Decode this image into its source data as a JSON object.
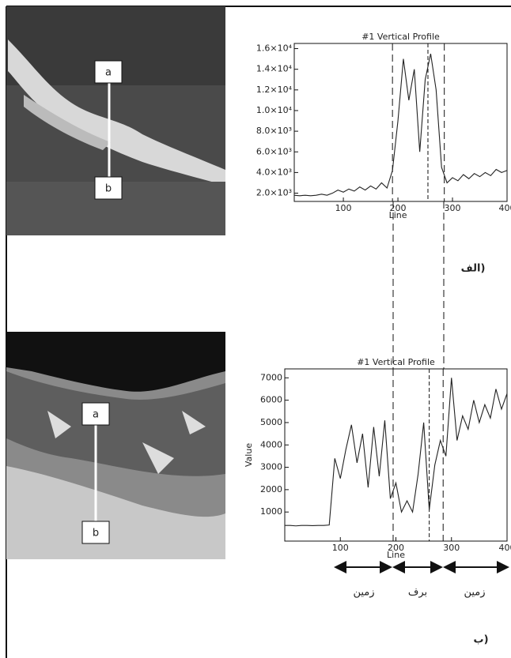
{
  "chart_data": [
    {
      "type": "line",
      "title": "#1 Vertical Profile",
      "x_label": "Line",
      "x": [
        10,
        20,
        30,
        40,
        50,
        60,
        70,
        80,
        90,
        100,
        110,
        120,
        130,
        140,
        150,
        160,
        170,
        180,
        190,
        200,
        210,
        220,
        230,
        240,
        250,
        260,
        270,
        280,
        290,
        300,
        310,
        320,
        330,
        340,
        350,
        360,
        370,
        380,
        390,
        400
      ],
      "values": [
        1800,
        1750,
        1800,
        1750,
        1800,
        1900,
        1800,
        2000,
        2300,
        2100,
        2400,
        2200,
        2600,
        2300,
        2700,
        2400,
        3000,
        2500,
        4200,
        9000,
        15000,
        11000,
        14000,
        6000,
        13000,
        15500,
        12000,
        4500,
        3000,
        3500,
        3200,
        3800,
        3400,
        3900,
        3600,
        4000,
        3700,
        4300,
        4000,
        4200
      ],
      "color": "#222222",
      "xlim": [
        10,
        400
      ],
      "xticks": [
        100,
        200,
        300,
        400
      ],
      "ylim": [
        1200,
        16500
      ],
      "yticks": [
        {
          "value": 2000,
          "label": "2.0×10³"
        },
        {
          "value": 4000,
          "label": "4.0×10³"
        },
        {
          "value": 6000,
          "label": "6.0×10³"
        },
        {
          "value": 8000,
          "label": "8.0×10³"
        },
        {
          "value": 10000,
          "label": "1.0×10⁴"
        },
        {
          "value": 12000,
          "label": "1.2×10⁴"
        },
        {
          "value": 14000,
          "label": "1.4×10⁴"
        },
        {
          "value": 16000,
          "label": "1.6×10⁴"
        }
      ],
      "vlines": [
        190,
        255,
        285
      ]
    },
    {
      "type": "line",
      "title": "#1 Vertical Profile",
      "x_label": "Line",
      "y_label": "Value",
      "x": [
        0,
        10,
        20,
        30,
        40,
        50,
        60,
        70,
        80,
        90,
        100,
        110,
        120,
        130,
        140,
        150,
        160,
        170,
        180,
        190,
        200,
        210,
        220,
        230,
        240,
        250,
        260,
        270,
        280,
        290,
        300,
        310,
        320,
        330,
        340,
        350,
        360,
        370,
        380,
        390,
        400
      ],
      "values": [
        400,
        400,
        380,
        400,
        400,
        390,
        400,
        400,
        420,
        3400,
        2500,
        3800,
        4900,
        3200,
        4500,
        2100,
        4800,
        2600,
        5100,
        1600,
        2300,
        1000,
        1500,
        1000,
        2700,
        5000,
        1100,
        3100,
        4200,
        3500,
        7000,
        4200,
        5300,
        4700,
        6000,
        5000,
        5800,
        5200,
        6500,
        5600,
        6300
      ],
      "color": "#222222",
      "xlim": [
        0,
        400
      ],
      "xticks": [
        100,
        200,
        300,
        400
      ],
      "ylim": [
        -300,
        7400
      ],
      "yticks": [
        1000,
        2000,
        3000,
        4000,
        5000,
        6000,
        7000
      ],
      "vlines": [
        195,
        260,
        285
      ]
    }
  ],
  "images": [
    {
      "top_label": "a",
      "bottom_label": "b",
      "panel_label": "الف)"
    },
    {
      "top_label": "a",
      "bottom_label": "b",
      "panel_label": "ب)"
    }
  ],
  "zones": [
    "زمین",
    "برف",
    "زمین"
  ]
}
